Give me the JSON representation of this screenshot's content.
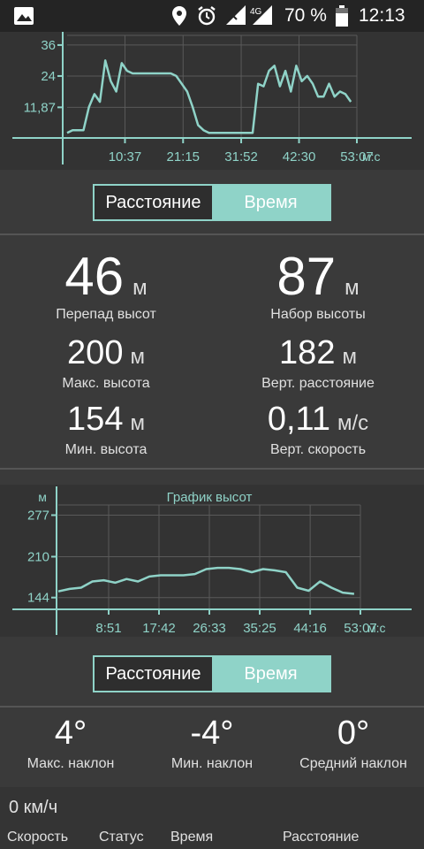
{
  "status_bar": {
    "battery_percent": "70 %",
    "time": "12:13",
    "network": "4G",
    "icons": [
      "image-icon",
      "location-icon",
      "alarm-icon",
      "signal-icon",
      "battery-icon"
    ]
  },
  "chart_top": {
    "type": "line",
    "y_ticks": [
      "36",
      "24",
      "11,87"
    ],
    "y_tick_values": [
      36,
      24,
      11.87
    ],
    "x_ticks": [
      "10:37",
      "21:15",
      "31:52",
      "42:30",
      "53:07"
    ],
    "x_unit": "м:с",
    "series": [
      {
        "x": [
          0,
          1,
          2,
          3,
          4,
          5,
          6,
          7,
          8,
          9,
          10,
          11,
          12,
          13,
          14,
          15,
          16,
          17,
          18,
          19,
          20,
          21,
          22,
          23,
          24,
          25,
          26,
          27,
          28,
          29,
          30,
          31,
          32,
          33,
          34,
          35,
          36,
          37,
          38,
          39,
          40,
          41,
          42,
          43,
          44,
          45,
          46,
          47,
          48,
          49,
          50,
          51,
          52
        ],
        "values": [
          2,
          3,
          3,
          3,
          12,
          17,
          14,
          30,
          22,
          18,
          29,
          26,
          25,
          25,
          25,
          25,
          25,
          25,
          25,
          25,
          24,
          21,
          18,
          12,
          5,
          3,
          2,
          2,
          2,
          2,
          2,
          2,
          2,
          2,
          2,
          21,
          20,
          26,
          28,
          20,
          26,
          18,
          28,
          22,
          24,
          21,
          16,
          16,
          21,
          16,
          18,
          17,
          14
        ]
      }
    ]
  },
  "toggle_top": {
    "distance_label": "Расстояние",
    "time_label": "Время",
    "selected": "time"
  },
  "stats": {
    "elevation_diff": {
      "value": "46",
      "unit": "м",
      "label": "Перепад высот"
    },
    "elevation_gain": {
      "value": "87",
      "unit": "м",
      "label": "Набор высоты"
    },
    "max_altitude": {
      "value": "200",
      "unit": "м",
      "label": "Макс. высота"
    },
    "vertical_distance": {
      "value": "182",
      "unit": "м",
      "label": "Верт. расстояние"
    },
    "min_altitude": {
      "value": "154",
      "unit": "м",
      "label": "Мин. высота"
    },
    "vertical_speed": {
      "value": "0,11",
      "unit": "м/с",
      "label": "Верт. скорость"
    }
  },
  "chart_bottom": {
    "type": "line",
    "title": "График высот",
    "y_unit": "м",
    "y_ticks": [
      "277",
      "210",
      "144"
    ],
    "y_tick_values": [
      277,
      210,
      144
    ],
    "x_ticks": [
      "8:51",
      "17:42",
      "26:33",
      "35:25",
      "44:16",
      "53:07"
    ],
    "x_unit": "м:с",
    "series": [
      {
        "x": [
          0,
          2,
          4,
          6,
          8,
          10,
          12,
          14,
          16,
          18,
          20,
          22,
          24,
          26,
          28,
          30,
          32,
          34,
          36,
          38,
          40,
          42,
          44,
          46,
          48,
          50,
          52
        ],
        "values": [
          154,
          158,
          160,
          170,
          172,
          168,
          174,
          170,
          178,
          180,
          180,
          180,
          182,
          190,
          192,
          192,
          190,
          185,
          190,
          188,
          185,
          160,
          155,
          170,
          160,
          152,
          150
        ]
      }
    ]
  },
  "toggle_bottom": {
    "distance_label": "Расстояние",
    "time_label": "Время",
    "selected": "time"
  },
  "slopes": {
    "max": {
      "value": "4°",
      "label": "Макс. наклон"
    },
    "min": {
      "value": "-4°",
      "label": "Мин. наклон"
    },
    "avg": {
      "value": "0°",
      "label": "Средний наклон"
    }
  },
  "bottom_bar": {
    "speed_value": "0 км/ч",
    "labels": [
      "Скорость",
      "Статус",
      "Время",
      "Расстояние"
    ]
  }
}
